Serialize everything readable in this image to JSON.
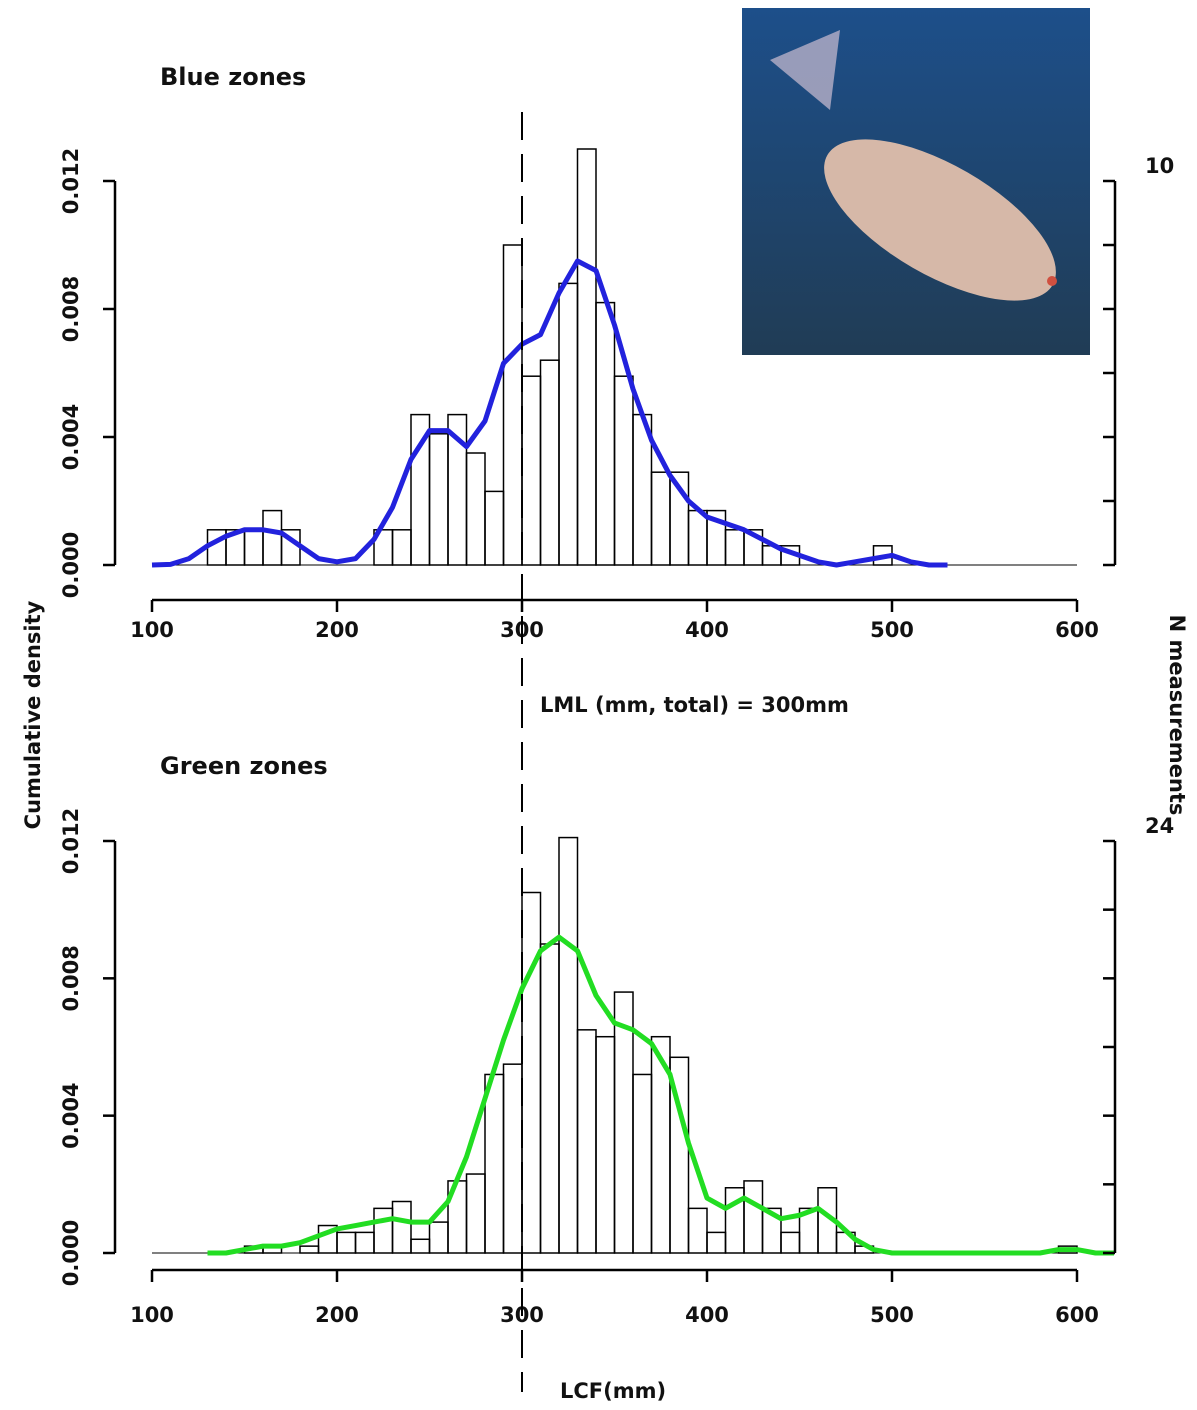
{
  "chart_data": [
    {
      "type": "histogram",
      "title": "Blue zones",
      "ylabel": "Cumulative density",
      "y2label": "N measurements",
      "annotation": "LML (mm, total) = 300mm",
      "lml": 300,
      "bins": [
        130,
        140,
        150,
        160,
        170,
        180,
        190,
        200,
        210,
        220,
        230,
        240,
        250,
        260,
        270,
        280,
        290,
        300,
        310,
        320,
        330,
        340,
        350,
        360,
        370,
        380,
        390,
        400,
        410,
        420,
        430,
        440,
        450,
        460,
        470,
        480,
        490,
        500
      ],
      "values": [
        0.0011,
        0.0011,
        0.0011,
        0.0017,
        0.0011,
        0,
        0,
        0,
        0,
        0.0011,
        0.0011,
        0.0047,
        0.0041,
        0.0047,
        0.0035,
        0.0023,
        0.01,
        0.0059,
        0.0064,
        0.0088,
        0.013,
        0.0082,
        0.0059,
        0.0047,
        0.0029,
        0.0029,
        0.0017,
        0.0017,
        0.0011,
        0.0011,
        0.0006,
        0.0006,
        0,
        0,
        0,
        0,
        0.0006
      ],
      "line": {
        "color": "#2222dd",
        "x": [
          100,
          110,
          120,
          130,
          140,
          150,
          160,
          170,
          180,
          190,
          200,
          210,
          220,
          230,
          240,
          250,
          260,
          270,
          280,
          290,
          300,
          310,
          320,
          330,
          340,
          350,
          360,
          370,
          380,
          390,
          400,
          410,
          420,
          430,
          440,
          450,
          460,
          470,
          480,
          490,
          500,
          510,
          520,
          530
        ],
        "values": [
          0,
          2e-05,
          0.0002,
          0.0006,
          0.0009,
          0.0011,
          0.0011,
          0.001,
          0.0006,
          0.0002,
          0.0001,
          0.0002,
          0.0008,
          0.0018,
          0.0033,
          0.0042,
          0.0042,
          0.0037,
          0.0045,
          0.0063,
          0.0069,
          0.0072,
          0.0085,
          0.0095,
          0.0092,
          0.0075,
          0.0055,
          0.0039,
          0.0028,
          0.002,
          0.0015,
          0.0013,
          0.0011,
          0.0008,
          0.0005,
          0.0003,
          0.0001,
          0,
          0.0001,
          0.0002,
          0.0003,
          0.0001,
          0,
          0
        ]
      },
      "xlim": [
        100,
        600
      ],
      "xticks": [
        100,
        200,
        300,
        400,
        500,
        600
      ],
      "ylim": [
        0,
        0.012
      ],
      "yticks": [
        {
          "value": 0,
          "label": "0.000"
        },
        {
          "value": 0.004,
          "label": "0.004"
        },
        {
          "value": 0.008,
          "label": "0.008"
        },
        {
          "value": 0.012,
          "label": "0.012"
        }
      ],
      "y2lim": [
        0,
        10
      ],
      "y2ticks": [
        {
          "value": 0,
          "label": null
        },
        {
          "value": 1.667,
          "label": null
        },
        {
          "value": 3.333,
          "label": null
        },
        {
          "value": 5,
          "label": null
        },
        {
          "value": 6.667,
          "label": null
        },
        {
          "value": 8.333,
          "label": null
        },
        {
          "value": 10,
          "label": "10"
        }
      ]
    },
    {
      "type": "histogram",
      "title": "Green zones",
      "xlabel": "LCF(mm)",
      "lml": 300,
      "bins": [
        150,
        160,
        170,
        180,
        190,
        200,
        210,
        220,
        230,
        240,
        250,
        260,
        270,
        280,
        290,
        300,
        310,
        320,
        330,
        340,
        350,
        360,
        370,
        380,
        390,
        400,
        410,
        420,
        430,
        440,
        450,
        460,
        470,
        480,
        490,
        500,
        510,
        520,
        530,
        540,
        550,
        560,
        570,
        580,
        590,
        600
      ],
      "values": [
        0.0002,
        0.0002,
        0,
        0.0002,
        0.0008,
        0.0006,
        0.0006,
        0.0013,
        0.0015,
        0.0004,
        0.0009,
        0.0021,
        0.0023,
        0.0052,
        0.0055,
        0.0105,
        0.009,
        0.0121,
        0.0065,
        0.0063,
        0.0076,
        0.0052,
        0.0063,
        0.0057,
        0.0013,
        0.0006,
        0.0019,
        0.0021,
        0.0013,
        0.0006,
        0.0013,
        0.0019,
        0.0006,
        0.0002,
        0,
        0,
        0,
        0,
        0,
        0,
        0,
        0,
        0,
        0,
        0.0002
      ],
      "line": {
        "color": "#22dd22",
        "x": [
          130,
          140,
          150,
          160,
          170,
          180,
          190,
          200,
          210,
          220,
          230,
          240,
          250,
          260,
          270,
          280,
          290,
          300,
          310,
          320,
          330,
          340,
          350,
          360,
          370,
          380,
          390,
          400,
          410,
          420,
          430,
          440,
          450,
          460,
          470,
          480,
          490,
          500,
          510,
          520,
          530,
          540,
          550,
          560,
          570,
          580,
          590,
          600,
          610,
          620
        ],
        "values": [
          0,
          0,
          0.0001,
          0.0002,
          0.0002,
          0.0003,
          0.0005,
          0.0007,
          0.0008,
          0.0009,
          0.001,
          0.0009,
          0.0009,
          0.0015,
          0.0028,
          0.0045,
          0.0062,
          0.0077,
          0.0088,
          0.0092,
          0.0088,
          0.0075,
          0.0067,
          0.0065,
          0.0061,
          0.0052,
          0.0032,
          0.0016,
          0.0013,
          0.0016,
          0.0013,
          0.001,
          0.0011,
          0.0013,
          0.0009,
          0.0004,
          0.0001,
          0,
          0,
          0,
          0,
          0,
          0,
          0,
          0,
          0,
          0.0001,
          0.0001,
          0,
          0
        ]
      },
      "xlim": [
        100,
        600
      ],
      "xticks": [
        100,
        200,
        300,
        400,
        500,
        600
      ],
      "ylim": [
        0,
        0.012
      ],
      "yticks": [
        {
          "value": 0,
          "label": "0.000"
        },
        {
          "value": 0.004,
          "label": "0.004"
        },
        {
          "value": 0.008,
          "label": "0.008"
        },
        {
          "value": 0.012,
          "label": "0.012"
        }
      ],
      "y2lim": [
        0,
        24
      ],
      "y2ticks": [
        {
          "value": 0,
          "label": null
        },
        {
          "value": 4,
          "label": null
        },
        {
          "value": 8,
          "label": null
        },
        {
          "value": 12,
          "label": null
        },
        {
          "value": 16,
          "label": null
        },
        {
          "value": 20,
          "label": null
        },
        {
          "value": 24,
          "label": "24"
        }
      ]
    }
  ]
}
